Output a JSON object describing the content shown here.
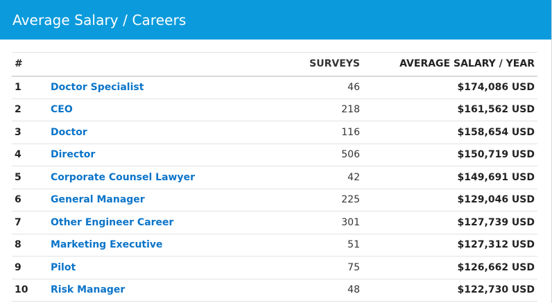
{
  "header": {
    "title": "Average Salary / Careers"
  },
  "table": {
    "columns": {
      "num": "#",
      "career": "",
      "surveys": "SURVEYS",
      "salary": "AVERAGE SALARY / YEAR"
    },
    "rows": [
      {
        "num": "1",
        "career": "Doctor Specialist",
        "surveys": "46",
        "salary": "$174,086 USD"
      },
      {
        "num": "2",
        "career": "CEO",
        "surveys": "218",
        "salary": "$161,562 USD"
      },
      {
        "num": "3",
        "career": "Doctor",
        "surveys": "116",
        "salary": "$158,654 USD"
      },
      {
        "num": "4",
        "career": "Director",
        "surveys": "506",
        "salary": "$150,719 USD"
      },
      {
        "num": "5",
        "career": "Corporate Counsel Lawyer",
        "surveys": "42",
        "salary": "$149,691 USD"
      },
      {
        "num": "6",
        "career": "General Manager",
        "surveys": "225",
        "salary": "$129,046 USD"
      },
      {
        "num": "7",
        "career": "Other Engineer Career",
        "surveys": "301",
        "salary": "$127,739 USD"
      },
      {
        "num": "8",
        "career": "Marketing Executive",
        "surveys": "51",
        "salary": "$127,312 USD"
      },
      {
        "num": "9",
        "career": "Pilot",
        "surveys": "75",
        "salary": "$126,662 USD"
      },
      {
        "num": "10",
        "career": "Risk Manager",
        "surveys": "48",
        "salary": "$122,730 USD"
      }
    ]
  },
  "colors": {
    "header_bg": "#0b9bdc",
    "link": "#0b74c9"
  }
}
